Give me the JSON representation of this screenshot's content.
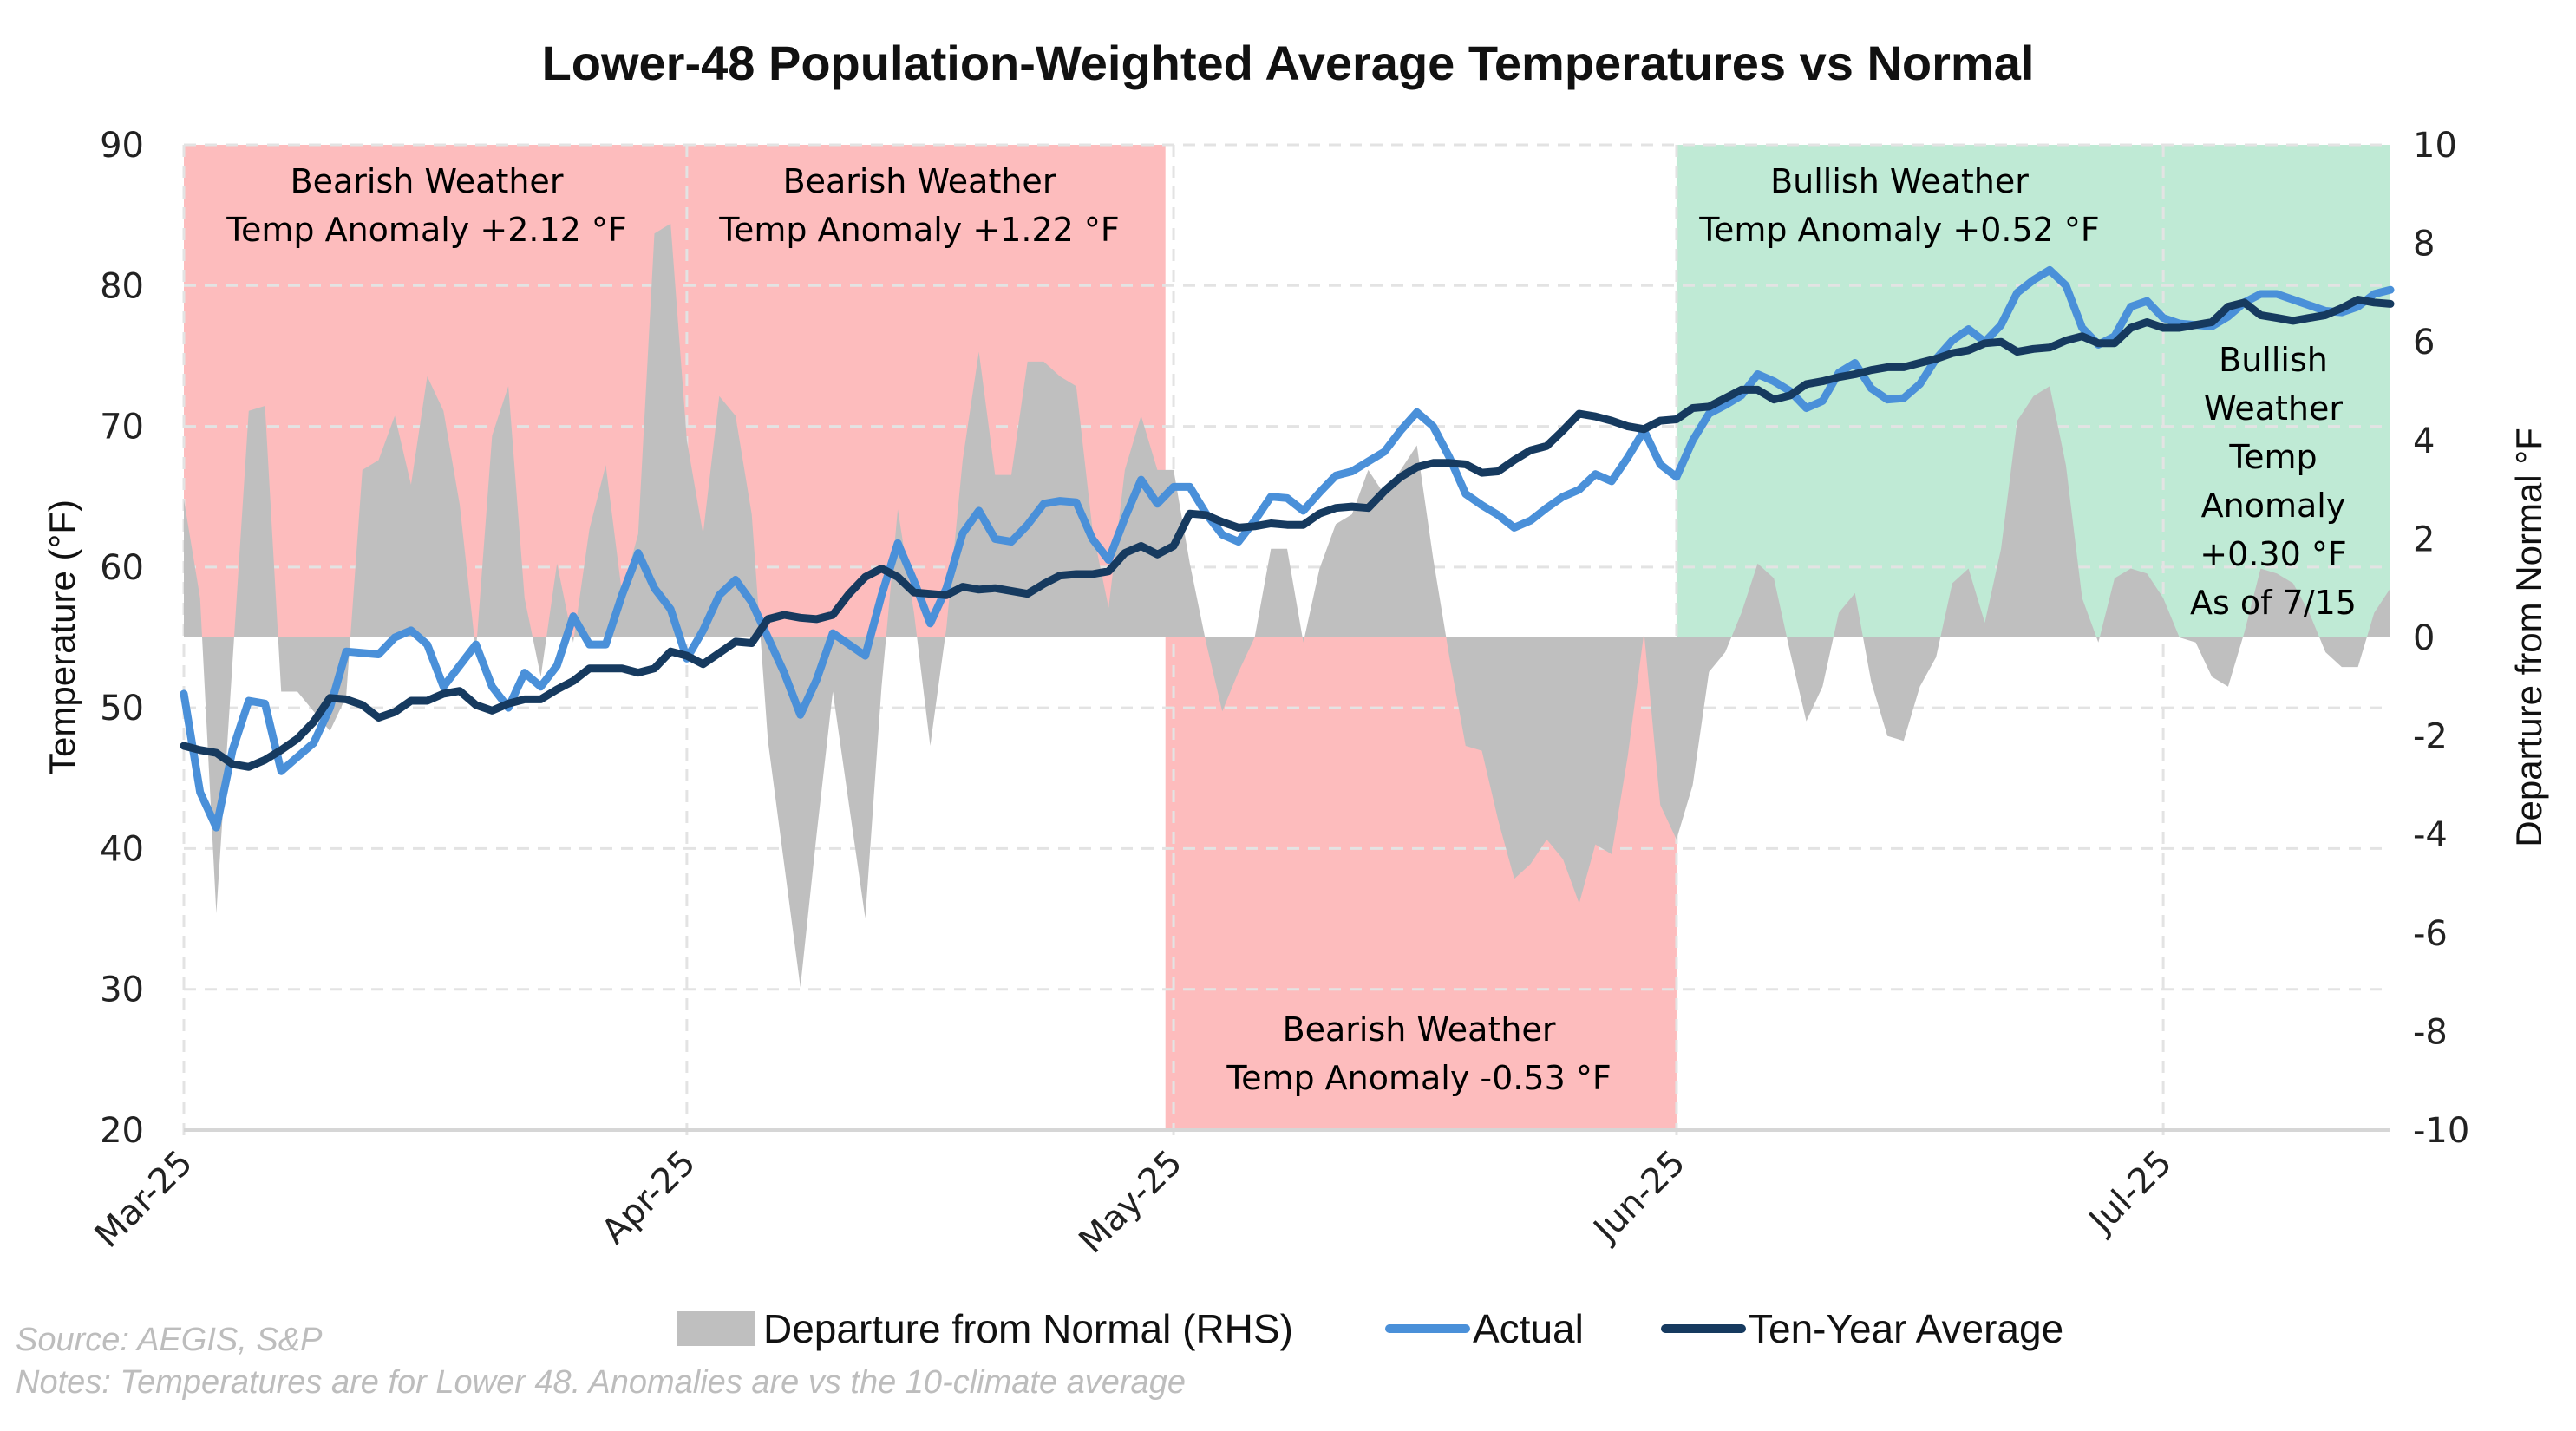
{
  "colors": {
    "bearish": "#fdbcbd",
    "bullish": "#bfead5",
    "departure": "#bfbfbf",
    "actual": "#4a90d9",
    "ten_year": "#163a5f",
    "grid": "#e3e3e3"
  },
  "chart_data": {
    "type": "line",
    "title": "Lower-48 Population-Weighted Average Temperatures vs Normal",
    "xlabel": "",
    "ylabel": "Temperature (°F)",
    "y2label": "Departure from Normal °F",
    "ylim": [
      20,
      90
    ],
    "y2lim": [
      -10,
      10
    ],
    "yticks": [
      "20",
      "30",
      "40",
      "50",
      "60",
      "70",
      "80",
      "90"
    ],
    "y2ticks": [
      "-10",
      "-8",
      "-6",
      "-4",
      "-2",
      "0",
      "2",
      "4",
      "6",
      "8",
      "10"
    ],
    "x_unit": "days since Mar 1, 2025",
    "xlim": [
      0,
      136
    ],
    "xticks": [
      {
        "day": 0,
        "label": "Mar-25"
      },
      {
        "day": 31,
        "label": "Apr-25"
      },
      {
        "day": 61,
        "label": "May-25"
      },
      {
        "day": 92,
        "label": "Jun-25"
      },
      {
        "day": 122,
        "label": "Jul-25"
      }
    ],
    "grid": true,
    "legend_position": "bottom",
    "series": [
      {
        "name": "Departure from Normal (RHS)",
        "type": "area",
        "axis": "right",
        "values": [
          2.8,
          0.8,
          -5.6,
          -0.5,
          4.6,
          4.7,
          -1.1,
          -1.1,
          -1.5,
          -1.9,
          -1.2,
          3.4,
          3.6,
          4.5,
          3.1,
          5.3,
          4.6,
          2.7,
          -0.3,
          4.1,
          5.1,
          0.8,
          -0.8,
          1.5,
          -0.1,
          2.2,
          3.5,
          0.9,
          2.1,
          8.2,
          8.4,
          4.0,
          2.1,
          4.9,
          4.5,
          2.5,
          -2.1,
          -4.6,
          -7.1,
          -4.0,
          -1.1,
          -3.4,
          -5.7,
          -1.0,
          2.6,
          0.5,
          -2.2,
          0.2,
          3.6,
          5.8,
          3.3,
          3.3,
          5.6,
          5.6,
          5.3,
          5.1,
          2.2,
          0.6,
          3.4,
          4.5,
          3.4,
          3.4,
          1.5,
          -0.1,
          -1.5,
          -0.7,
          0.0,
          1.8,
          1.8,
          -0.1,
          1.4,
          2.3,
          2.5,
          3.4,
          2.9,
          3.4,
          3.9,
          1.6,
          -0.4,
          -2.2,
          -2.3,
          -3.7,
          -4.9,
          -4.6,
          -4.1,
          -4.5,
          -5.4,
          -4.2,
          -4.4,
          -2.4,
          0.1,
          -3.4,
          -4.1,
          -3.0,
          -0.7,
          -0.3,
          0.5,
          1.5,
          1.2,
          -0.3,
          -1.7,
          -1.0,
          0.5,
          0.9,
          -0.9,
          -2.0,
          -2.1,
          -1.0,
          -0.4,
          1.1,
          1.4,
          0.3,
          1.8,
          4.4,
          4.9,
          5.1,
          3.5,
          0.8,
          -0.1,
          1.2,
          1.4,
          1.3,
          0.8,
          0.0,
          -0.1,
          -0.8,
          -1.0,
          0.1,
          1.4,
          1.3,
          1.1,
          0.5,
          -0.3,
          -0.6,
          -0.6,
          0.5,
          1.0
        ]
      },
      {
        "name": "Actual",
        "type": "line",
        "axis": "left",
        "values": [
          51,
          44,
          41.5,
          47,
          50.5,
          50.3,
          45.5,
          46.5,
          47.5,
          50,
          54,
          53.9,
          53.8,
          55,
          55.5,
          54.5,
          51.5,
          53,
          54.5,
          51.5,
          50,
          52.5,
          51.5,
          53,
          56.5,
          54.5,
          54.5,
          58,
          61,
          58.5,
          57,
          53.5,
          55.5,
          58,
          59.1,
          57.5,
          55,
          52.5,
          49.5,
          52,
          55.3,
          54.5,
          53.7,
          58,
          61.7,
          59,
          56,
          58.5,
          62.4,
          64,
          62,
          61.8,
          63,
          64.5,
          64.7,
          64.6,
          62,
          60.5,
          63.5,
          66.2,
          64.5,
          65.7,
          65.7,
          63.8,
          62.3,
          61.8,
          63.3,
          65,
          64.9,
          64,
          65.3,
          66.5,
          66.8,
          67.5,
          68.2,
          69.7,
          71,
          70,
          67.8,
          65.2,
          64.4,
          63.7,
          62.8,
          63.3,
          64.2,
          65,
          65.5,
          66.6,
          66.1,
          67.8,
          69.7,
          67.3,
          66.4,
          69,
          70.9,
          71.5,
          72.2,
          73.7,
          73.2,
          72.5,
          71.3,
          71.8,
          73.8,
          74.5,
          72.7,
          71.9,
          72,
          73,
          74.8,
          76.1,
          76.9,
          76,
          77.2,
          79.5,
          80.4,
          81.1,
          80,
          77,
          75.8,
          76.4,
          78.5,
          78.9,
          77.7,
          77.3,
          77.2,
          77.1,
          77.8,
          78.8,
          79.4,
          79.4,
          79,
          78.6,
          78.2,
          78.1,
          78.5,
          79.4,
          79.7
        ]
      },
      {
        "name": "Ten-Year Average",
        "type": "line",
        "axis": "left",
        "values": [
          47.3,
          47,
          46.8,
          46,
          45.8,
          46.3,
          47,
          47.8,
          49,
          50.7,
          50.6,
          50.2,
          49.3,
          49.7,
          50.5,
          50.5,
          51,
          51.2,
          50.2,
          49.8,
          50.3,
          50.6,
          50.6,
          51.3,
          51.9,
          52.8,
          52.8,
          52.8,
          52.5,
          52.8,
          54,
          53.7,
          53.1,
          53.9,
          54.7,
          54.6,
          56.3,
          56.6,
          56.4,
          56.3,
          56.6,
          58.1,
          59.3,
          59.9,
          59.3,
          58.2,
          58.1,
          58,
          58.6,
          58.4,
          58.5,
          58.3,
          58.1,
          58.8,
          59.4,
          59.5,
          59.5,
          59.7,
          61,
          61.5,
          60.9,
          61.5,
          63.8,
          63.7,
          63.2,
          62.8,
          62.9,
          63.1,
          63,
          63,
          63.8,
          64.2,
          64.3,
          64.2,
          65.4,
          66.4,
          67.1,
          67.4,
          67.4,
          67.3,
          66.7,
          66.8,
          67.6,
          68.3,
          68.6,
          69.7,
          70.9,
          70.7,
          70.4,
          70,
          69.8,
          70.4,
          70.5,
          71.3,
          71.4,
          72,
          72.6,
          72.6,
          71.9,
          72.2,
          73,
          73.2,
          73.5,
          73.7,
          74,
          74.2,
          74.2,
          74.5,
          74.8,
          75.2,
          75.4,
          75.9,
          76,
          75.3,
          75.5,
          75.6,
          76.1,
          76.4,
          75.9,
          75.9,
          77,
          77.4,
          77,
          77,
          77.2,
          77.4,
          78.5,
          78.8,
          77.9,
          77.7,
          77.5,
          77.7,
          77.9,
          78.4,
          79,
          78.8,
          78.7
        ]
      }
    ],
    "regions": [
      {
        "kind": "bearish",
        "from_day": 0,
        "to_day": 60.5,
        "side": "above-zero",
        "lines": [
          "Bearish Weather",
          "Temp Anomaly +2.12 °F"
        ]
      },
      {
        "kind": "bearish",
        "from_day": 0,
        "to_day": 60.5,
        "side": "above-zero",
        "lines": [
          "Bearish Weather",
          "Temp Anomaly +1.22 °F"
        ]
      },
      {
        "kind": "bearish",
        "from_day": 60.5,
        "to_day": 92,
        "side": "below-zero",
        "lines": [
          "Bearish Weather",
          "Temp Anomaly -0.53 °F"
        ]
      },
      {
        "kind": "bullish",
        "from_day": 92,
        "to_day": 136,
        "side": "above-zero",
        "lines": [
          "Bullish Weather",
          "Temp Anomaly +0.52 °F"
        ]
      },
      {
        "kind": "bullish",
        "from_day": 92,
        "to_day": 136,
        "side": "above-zero",
        "lines": [
          "Bullish",
          "Weather",
          "Temp",
          "Anomaly",
          "+0.30 °F",
          "As of 7/15"
        ]
      }
    ],
    "legend": [
      "Departure from Normal (RHS)",
      "Actual",
      "Ten-Year Average"
    ]
  },
  "footer": {
    "source": "Source: AEGIS, S&P",
    "notes": "Notes: Temperatures are for Lower 48. Anomalies are vs the 10-climate average"
  }
}
